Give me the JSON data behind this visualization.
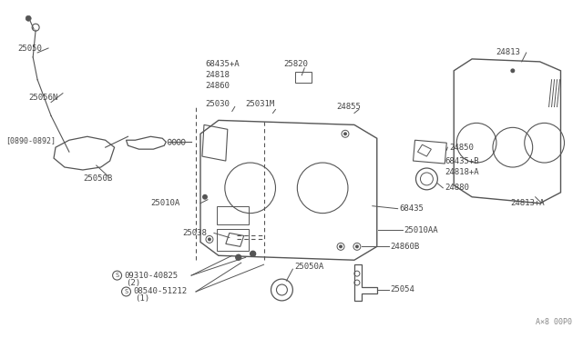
{
  "title": "",
  "bg_color": "#ffffff",
  "line_color": "#555555",
  "text_color": "#444444",
  "fig_width": 6.4,
  "fig_height": 3.72,
  "dpi": 100,
  "watermark": "A×8 00P0",
  "parts": [
    {
      "label": "08540-51212",
      "prefix": "S",
      "note": "(1)"
    },
    {
      "label": "09310-40825",
      "prefix": "S",
      "note": "(2)"
    },
    {
      "label": "25050A"
    },
    {
      "label": "25054"
    },
    {
      "label": "25038"
    },
    {
      "label": "24860B"
    },
    {
      "label": "25010AA"
    },
    {
      "label": "68435"
    },
    {
      "label": "25010A"
    },
    {
      "label": "24880"
    },
    {
      "label": "24818+A"
    },
    {
      "label": "68435+B"
    },
    {
      "label": "24850"
    },
    {
      "label": "25050B"
    },
    {
      "label": "25030"
    },
    {
      "label": "25031M"
    },
    {
      "label": "24855"
    },
    {
      "label": "24813+A"
    },
    {
      "label": "24860"
    },
    {
      "label": "24818"
    },
    {
      "label": "68435+A"
    },
    {
      "label": "25820"
    },
    {
      "label": "25050"
    },
    {
      "label": "25056N"
    },
    {
      "label": "24813"
    },
    {
      "label": "[0890-0892]"
    }
  ]
}
